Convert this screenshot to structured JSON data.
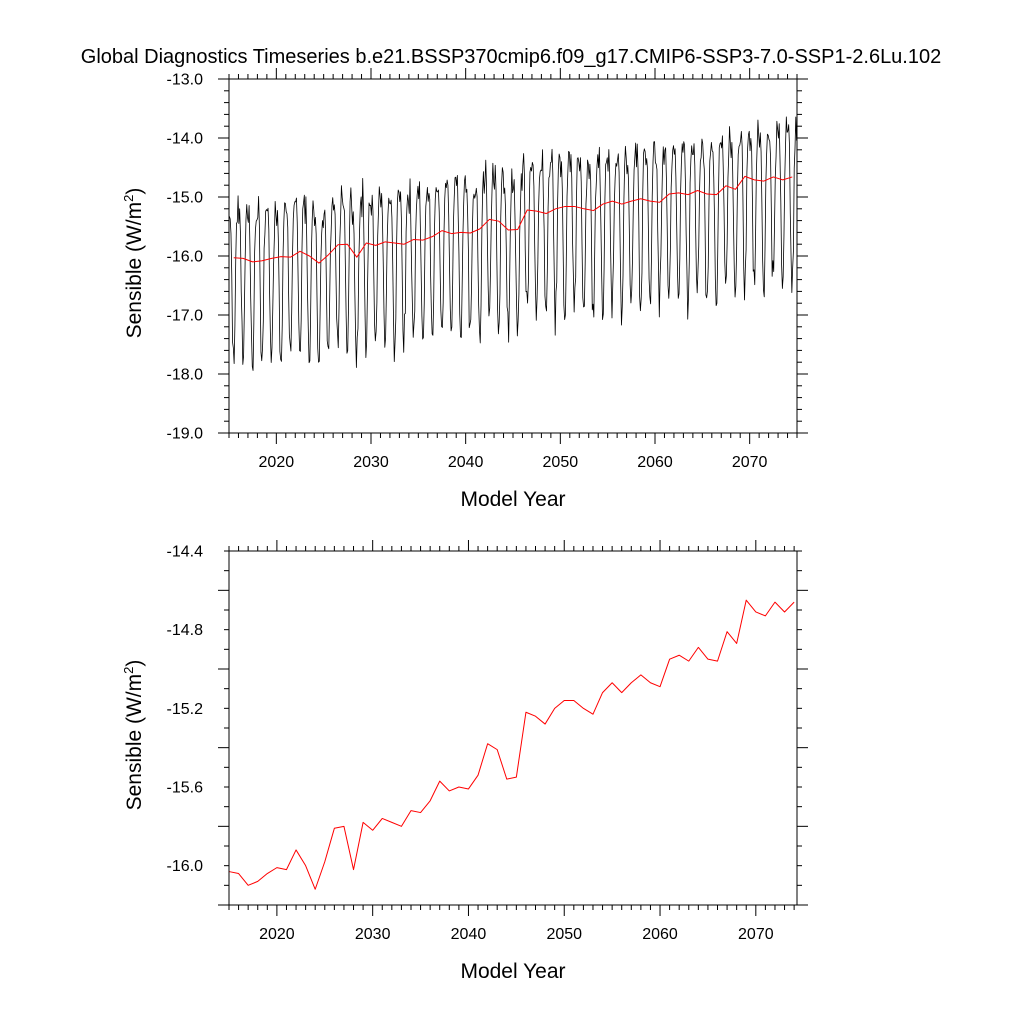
{
  "figure": {
    "title": "Global Diagnostics Timeseries b.e21.BSSP370cmip6.f09_g17.CMIP6-SSP3-7.0-SSP1-2.6Lu.102"
  },
  "chart_data": [
    {
      "type": "line",
      "xlabel": "Model Year",
      "ylabel": "Sensible (W/m²)",
      "ylabel_main": "Sensible (W/m",
      "ylabel_sup": "2",
      "ylabel_close": ")",
      "xlim": [
        2015,
        2075
      ],
      "ylim": [
        -19.0,
        -13.0
      ],
      "xticks": [
        2020,
        2030,
        2040,
        2050,
        2060,
        2070
      ],
      "yticks": [
        -19.0,
        -18.0,
        -17.0,
        -16.0,
        -15.0,
        -14.0,
        -13.0
      ],
      "grid": false,
      "series": [
        {
          "kind": "monthly",
          "color": "#000000",
          "x_start": 2015.0417,
          "x_step": 0.08333,
          "annual_baseline": "series 1 of panel 2",
          "seasonal_cycle_offsets": [
            0.65,
            0.8,
            0.4,
            -0.45,
            -1.3,
            -1.65,
            -1.5,
            -1.0,
            0.05,
            0.55,
            0.8,
            0.75
          ],
          "notes": "dense monthly oscillation around the annual mean"
        },
        {
          "kind": "annual",
          "color": "#ff0000",
          "x": [
            2015.5,
            2016.5,
            2017.5,
            2018.5,
            2019.5,
            2020.5,
            2021.5,
            2022.5,
            2023.5,
            2024.5,
            2025.5,
            2026.5,
            2027.5,
            2028.5,
            2029.5,
            2030.5,
            2031.5,
            2032.5,
            2033.5,
            2034.5,
            2035.5,
            2036.5,
            2037.5,
            2038.5,
            2039.5,
            2040.5,
            2041.5,
            2042.5,
            2043.5,
            2044.5,
            2045.5,
            2046.5,
            2047.5,
            2048.5,
            2049.5,
            2050.5,
            2051.5,
            2052.5,
            2053.5,
            2054.5,
            2055.5,
            2056.5,
            2057.5,
            2058.5,
            2059.5,
            2060.5,
            2061.5,
            2062.5,
            2063.5,
            2064.5,
            2065.5,
            2066.5,
            2067.5,
            2068.5,
            2069.5,
            2070.5,
            2071.5,
            2072.5,
            2073.5,
            2074.5
          ],
          "values": [
            -16.03,
            -16.04,
            -16.1,
            -16.08,
            -16.04,
            -16.01,
            -16.02,
            -15.92,
            -16.0,
            -16.12,
            -15.98,
            -15.81,
            -15.8,
            -16.02,
            -15.78,
            -15.82,
            -15.76,
            -15.78,
            -15.8,
            -15.72,
            -15.73,
            -15.67,
            -15.57,
            -15.62,
            -15.6,
            -15.61,
            -15.54,
            -15.38,
            -15.41,
            -15.56,
            -15.55,
            -15.22,
            -15.24,
            -15.28,
            -15.2,
            -15.16,
            -15.16,
            -15.2,
            -15.23,
            -15.12,
            -15.07,
            -15.12,
            -15.07,
            -15.03,
            -15.07,
            -15.09,
            -14.95,
            -14.93,
            -14.96,
            -14.89,
            -14.95,
            -14.96,
            -14.81,
            -14.87,
            -14.65,
            -14.71,
            -14.73,
            -14.66,
            -14.71,
            -14.66
          ]
        }
      ]
    },
    {
      "type": "line",
      "xlabel": "Model Year",
      "ylabel": "Sensible (W/m²)",
      "ylabel_main": "Sensible (W/m",
      "ylabel_sup": "2",
      "ylabel_close": ")",
      "xlim": [
        2015,
        2074.3
      ],
      "ylim": [
        -16.2,
        -14.4
      ],
      "xticks": [
        2020,
        2030,
        2040,
        2050,
        2060,
        2070
      ],
      "yticks": [
        -16.0,
        -15.6,
        -15.2,
        -14.8,
        -14.4
      ],
      "grid": false,
      "series": [
        {
          "kind": "annual",
          "color": "#ff0000",
          "x": [
            2015.0,
            2016.0,
            2017.0,
            2018.0,
            2019.0,
            2020.0,
            2021.0,
            2022.0,
            2023.0,
            2024.0,
            2025.0,
            2026.0,
            2027.0,
            2028.0,
            2029.0,
            2030.0,
            2031.0,
            2032.0,
            2033.0,
            2034.0,
            2035.0,
            2036.0,
            2037.0,
            2038.0,
            2039.0,
            2040.0,
            2041.0,
            2042.0,
            2043.0,
            2044.0,
            2045.0,
            2046.0,
            2047.0,
            2048.0,
            2049.0,
            2050.0,
            2051.0,
            2052.0,
            2053.0,
            2054.0,
            2055.0,
            2056.0,
            2057.0,
            2058.0,
            2059.0,
            2060.0,
            2061.0,
            2062.0,
            2063.0,
            2064.0,
            2065.0,
            2066.0,
            2067.0,
            2068.0,
            2069.0,
            2070.0,
            2071.0,
            2072.0,
            2073.0,
            2074.0
          ],
          "values": [
            -16.03,
            -16.04,
            -16.1,
            -16.08,
            -16.04,
            -16.01,
            -16.02,
            -15.92,
            -16.0,
            -16.12,
            -15.98,
            -15.81,
            -15.8,
            -16.02,
            -15.78,
            -15.82,
            -15.76,
            -15.78,
            -15.8,
            -15.72,
            -15.73,
            -15.67,
            -15.57,
            -15.62,
            -15.6,
            -15.61,
            -15.54,
            -15.38,
            -15.41,
            -15.56,
            -15.55,
            -15.22,
            -15.24,
            -15.28,
            -15.2,
            -15.16,
            -15.16,
            -15.2,
            -15.23,
            -15.12,
            -15.07,
            -15.12,
            -15.07,
            -15.03,
            -15.07,
            -15.09,
            -14.95,
            -14.93,
            -14.96,
            -14.89,
            -14.95,
            -14.96,
            -14.81,
            -14.87,
            -14.65,
            -14.71,
            -14.73,
            -14.66,
            -14.71,
            -14.66
          ]
        }
      ]
    }
  ]
}
